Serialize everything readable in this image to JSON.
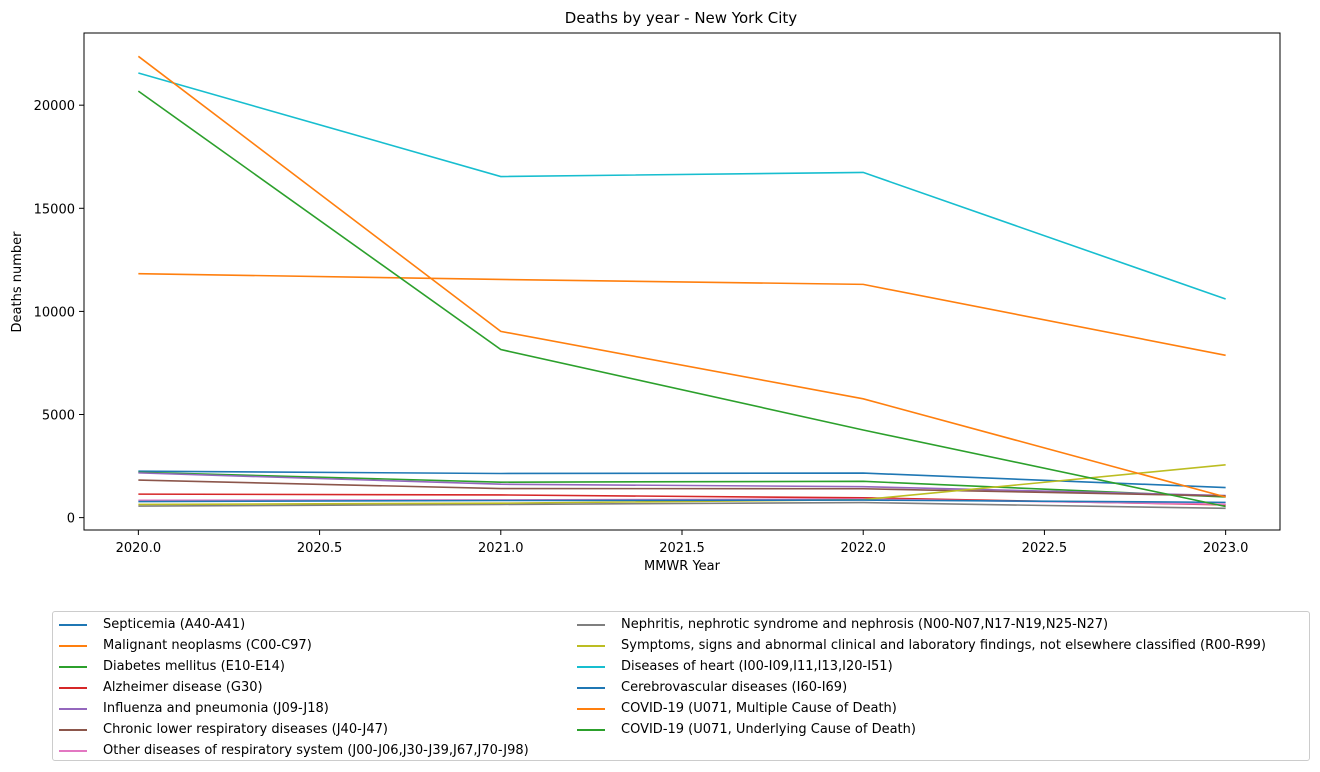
{
  "chart_data": {
    "type": "line",
    "title": "Deaths by year - New York City",
    "xlabel": "MMWR Year",
    "ylabel": "Deaths number",
    "x": [
      2020,
      2021,
      2022,
      2023
    ],
    "xlim": [
      2019.85,
      2023.15
    ],
    "ylim": [
      -600,
      23500
    ],
    "xticks": [
      2020.0,
      2020.5,
      2021.0,
      2021.5,
      2022.0,
      2022.5,
      2023.0
    ],
    "xtick_labels": [
      "2020.0",
      "2020.5",
      "2021.0",
      "2021.5",
      "2022.0",
      "2022.5",
      "2023.0"
    ],
    "yticks": [
      0,
      5000,
      10000,
      15000,
      20000
    ],
    "ytick_labels": [
      "0",
      "5000",
      "10000",
      "15000",
      "20000"
    ],
    "grid": false,
    "legend_position": "below",
    "series": [
      {
        "name": "Septicemia (A40-A41)",
        "color": "#1f77b4",
        "values": [
          2250,
          2140,
          2160,
          1460
        ]
      },
      {
        "name": "Malignant neoplasms (C00-C97)",
        "color": "#ff7f0e",
        "values": [
          11830,
          11550,
          11310,
          7870
        ]
      },
      {
        "name": "Diabetes mellitus (E10-E14)",
        "color": "#2ca02c",
        "values": [
          2200,
          1720,
          1760,
          1000
        ]
      },
      {
        "name": "Alzheimer disease (G30)",
        "color": "#d62728",
        "values": [
          1140,
          1100,
          960,
          620
        ]
      },
      {
        "name": "Influenza and pneumonia (J09-J18)",
        "color": "#9467bd",
        "values": [
          2170,
          1620,
          1500,
          1070
        ]
      },
      {
        "name": "Chronic lower respiratory diseases (J40-J47)",
        "color": "#8c564b",
        "values": [
          1820,
          1410,
          1400,
          1050
        ]
      },
      {
        "name": "Other diseases of respiratory system (J00-J06,J30-J39,J67,J70-J98)",
        "color": "#e377c2",
        "values": [
          840,
          860,
          900,
          650
        ]
      },
      {
        "name": "Nephritis, nephrotic syndrome and nephrosis (N00-N07,N17-N19,N25-N27)",
        "color": "#7f7f7f",
        "values": [
          560,
          640,
          730,
          450
        ]
      },
      {
        "name": "Symptoms, signs and abnormal clinical and laboratory findings, not elsewhere classified (R00-R99)",
        "color": "#bcbd22",
        "values": [
          640,
          700,
          870,
          2560
        ]
      },
      {
        "name": "Diseases of heart (I00-I09,I11,I13,I20-I51)",
        "color": "#17becf",
        "values": [
          21560,
          16540,
          16740,
          10600
        ]
      },
      {
        "name": "Cerebrovascular diseases (I60-I69)",
        "color": "#1f77b4",
        "values": [
          780,
          830,
          850,
          740
        ]
      },
      {
        "name": "COVID-19 (U071, Multiple Cause of Death)",
        "color": "#ff7f0e",
        "values": [
          22370,
          9030,
          5760,
          1000
        ]
      },
      {
        "name": "COVID-19 (U071, Underlying Cause of Death)",
        "color": "#2ca02c",
        "values": [
          20680,
          8150,
          4250,
          540
        ]
      }
    ]
  }
}
